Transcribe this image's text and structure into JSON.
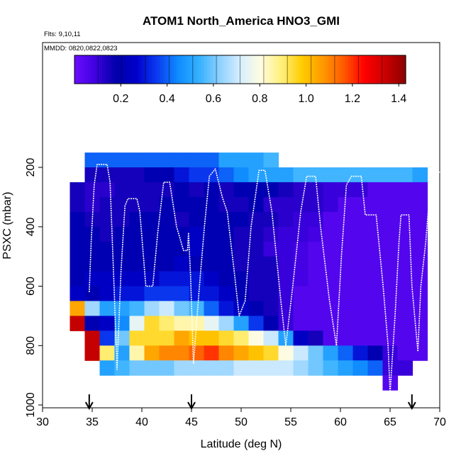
{
  "chart_data": {
    "type": "heatmap",
    "title": "ATOM1 North_America HNO3_GMI",
    "annotations": [
      "Flts: 9,10,11",
      "MMDD: 0820,0822,0823"
    ],
    "xlabel": "Latitude (deg N)",
    "ylabel": "PSXC (mbar)",
    "xlim": [
      30,
      70
    ],
    "ylim": [
      1000,
      0
    ],
    "x_ticks": [
      "30",
      "35",
      "40",
      "45",
      "50",
      "55",
      "60",
      "65",
      "70"
    ],
    "y_ticks": [
      "200",
      "400",
      "600",
      "800",
      "1000"
    ],
    "colorbar": {
      "range": [
        0,
        1.43
      ],
      "ticks": [
        "0.2",
        "0.4",
        "0.6",
        "0.8",
        "1.0",
        "1.2",
        "1.4"
      ],
      "colors": [
        "#6a0dff",
        "#4000e0",
        "#0000aa",
        "#0000cc",
        "#0b3cf0",
        "#0f8bff",
        "#33b0ff",
        "#8cd0ff",
        "#d6eeff",
        "#fffde0",
        "#fff07a",
        "#ffcc00",
        "#ff9900",
        "#ff5a00",
        "#ff0000",
        "#cc0000",
        "#8b0000"
      ]
    },
    "grid_columns_lat": [
      33.5,
      35,
      36.5,
      38,
      39.5,
      41,
      42.5,
      44,
      45.5,
      47,
      48.5,
      50,
      51.5,
      53,
      54.5,
      56,
      57.5,
      59,
      60.5,
      62,
      63.5,
      65,
      66.5,
      68
    ],
    "grid_rows_mbar": [
      175,
      225,
      275,
      325,
      375,
      425,
      475,
      525,
      575,
      625,
      675,
      725,
      775,
      825,
      875,
      925
    ],
    "values": [
      [
        null,
        0.4,
        0.4,
        0.4,
        0.4,
        0.4,
        0.4,
        0.4,
        0.4,
        0.4,
        0.5,
        0.5,
        0.5,
        0.55,
        null,
        null,
        null,
        null,
        null,
        null,
        null,
        null,
        null,
        null
      ],
      [
        null,
        0.15,
        0.15,
        0.15,
        0.15,
        0.2,
        0.2,
        0.3,
        0.35,
        0.35,
        0.4,
        0.45,
        0.5,
        0.5,
        0.5,
        0.55,
        0.55,
        0.55,
        0.55,
        0.55,
        0.55,
        0.55,
        0.55,
        0.5
      ],
      [
        0.15,
        0.12,
        0.12,
        0.15,
        0.15,
        0.15,
        0.15,
        0.2,
        0.15,
        0.2,
        0.15,
        0.2,
        0.2,
        0.2,
        0.15,
        0.12,
        0.12,
        0.1,
        0.1,
        0.1,
        0.05,
        0.05,
        0.05,
        0.05
      ],
      [
        0.15,
        0.12,
        0.15,
        0.15,
        0.15,
        0.15,
        0.2,
        0.2,
        0.2,
        0.2,
        0.15,
        0.15,
        0.2,
        0.12,
        0.12,
        0.12,
        0.12,
        0.1,
        0.05,
        0.05,
        0.05,
        0.05,
        0.05,
        0.05
      ],
      [
        0.2,
        0.15,
        0.15,
        0.15,
        0.2,
        0.2,
        0.2,
        0.15,
        0.2,
        0.2,
        0.2,
        0.2,
        0.15,
        0.15,
        0.12,
        0.1,
        0.1,
        0.05,
        0.05,
        0.05,
        0.05,
        0.05,
        0.05,
        0.05
      ],
      [
        0.2,
        0.2,
        0.15,
        0.2,
        0.2,
        0.2,
        0.2,
        0.2,
        0.25,
        0.2,
        0.2,
        0.15,
        0.15,
        0.12,
        0.1,
        0.1,
        0.08,
        0.05,
        0.05,
        0.05,
        0.05,
        0.05,
        0.05,
        0.05
      ],
      [
        0.2,
        0.2,
        0.2,
        0.2,
        0.2,
        0.2,
        0.2,
        0.2,
        0.25,
        0.2,
        0.2,
        0.15,
        0.15,
        0.1,
        0.1,
        0.08,
        0.05,
        0.05,
        0.05,
        0.05,
        0.05,
        0.05,
        0.05,
        0.05
      ],
      [
        0.2,
        0.2,
        0.2,
        0.2,
        0.2,
        0.2,
        0.2,
        0.25,
        0.2,
        0.2,
        0.2,
        0.15,
        0.15,
        0.15,
        0.1,
        0.08,
        0.05,
        0.05,
        0.05,
        0.05,
        0.05,
        0.05,
        0.05,
        0.05
      ],
      [
        0.2,
        0.25,
        0.25,
        0.25,
        0.25,
        0.25,
        0.3,
        0.3,
        0.3,
        0.25,
        0.2,
        0.2,
        0.15,
        0.15,
        0.1,
        0.08,
        0.05,
        0.05,
        0.05,
        0.05,
        0.05,
        0.05,
        0.05,
        0.05
      ],
      [
        0.25,
        0.2,
        0.25,
        0.3,
        0.3,
        0.35,
        0.35,
        0.35,
        0.3,
        0.3,
        0.25,
        0.2,
        0.15,
        0.15,
        0.1,
        0.05,
        0.05,
        0.05,
        0.05,
        0.05,
        0.05,
        0.05,
        0.05,
        0.05
      ],
      [
        1.05,
        0.65,
        0.5,
        0.5,
        0.55,
        0.65,
        0.7,
        0.6,
        0.55,
        0.4,
        0.3,
        0.25,
        0.2,
        0.15,
        0.1,
        0.05,
        0.05,
        0.05,
        0.05,
        0.05,
        0.05,
        0.05,
        0.05,
        0.05
      ],
      [
        1.35,
        0.2,
        0.25,
        0.45,
        0.75,
        0.95,
        0.9,
        0.85,
        0.85,
        0.75,
        0.65,
        0.5,
        0.35,
        0.2,
        0.1,
        0.05,
        0.05,
        0.05,
        0.05,
        0.05,
        0.05,
        0.05,
        0.05,
        0.05
      ],
      [
        null,
        1.35,
        0.35,
        0.6,
        0.95,
        0.95,
        0.95,
        1.05,
        1.0,
        1.0,
        0.95,
        0.9,
        0.8,
        0.7,
        0.5,
        0.25,
        0.15,
        0.05,
        0.05,
        0.05,
        0.05,
        0.05,
        0.05,
        0.05
      ],
      [
        null,
        1.35,
        0.9,
        0.5,
        0.85,
        1.05,
        1.1,
        1.1,
        1.15,
        1.2,
        1.1,
        1.05,
        1.0,
        0.95,
        0.8,
        0.7,
        0.6,
        0.5,
        0.4,
        0.3,
        0.2,
        0.1,
        0.05,
        0.05
      ],
      [
        null,
        null,
        0.5,
        0.55,
        0.6,
        0.6,
        0.6,
        0.65,
        0.65,
        0.65,
        0.65,
        0.7,
        0.7,
        0.7,
        0.7,
        0.65,
        0.6,
        0.55,
        0.5,
        0.45,
        0.4,
        0.1,
        0.1,
        null
      ],
      [
        null,
        null,
        null,
        null,
        null,
        null,
        null,
        null,
        null,
        null,
        null,
        null,
        null,
        null,
        null,
        null,
        null,
        null,
        null,
        null,
        null,
        0.05,
        null,
        null
      ]
    ],
    "flight_track": [
      [
        34.7,
        620
      ],
      [
        34.9,
        450
      ],
      [
        35.2,
        260
      ],
      [
        35.5,
        190
      ],
      [
        36.5,
        190
      ],
      [
        36.8,
        250
      ],
      [
        37.2,
        600
      ],
      [
        37.5,
        880
      ],
      [
        37.9,
        550
      ],
      [
        38.3,
        330
      ],
      [
        38.6,
        305
      ],
      [
        39.5,
        305
      ],
      [
        39.8,
        350
      ],
      [
        40.4,
        600
      ],
      [
        41.1,
        600
      ],
      [
        41.6,
        420
      ],
      [
        42.2,
        250
      ],
      [
        42.8,
        250
      ],
      [
        43.5,
        400
      ],
      [
        44.2,
        480
      ],
      [
        44.6,
        480
      ],
      [
        44.7,
        420
      ],
      [
        44.9,
        560
      ],
      [
        45.2,
        860
      ],
      [
        45.8,
        600
      ],
      [
        46.3,
        400
      ],
      [
        46.8,
        230
      ],
      [
        47.4,
        205
      ],
      [
        48.1,
        300
      ],
      [
        48.6,
        350
      ],
      [
        49.3,
        550
      ],
      [
        49.8,
        700
      ],
      [
        50.4,
        650
      ],
      [
        51.0,
        400
      ],
      [
        51.8,
        210
      ],
      [
        52.4,
        210
      ],
      [
        53.1,
        350
      ],
      [
        54.0,
        650
      ],
      [
        54.5,
        800
      ],
      [
        55.2,
        600
      ],
      [
        56.0,
        350
      ],
      [
        56.6,
        230
      ],
      [
        57.5,
        230
      ],
      [
        58.0,
        400
      ],
      [
        58.9,
        650
      ],
      [
        59.6,
        800
      ],
      [
        60.1,
        500
      ],
      [
        60.6,
        260
      ],
      [
        61.1,
        230
      ],
      [
        62.1,
        230
      ],
      [
        62.5,
        360
      ],
      [
        63.6,
        360
      ],
      [
        64.3,
        600
      ],
      [
        64.8,
        800
      ],
      [
        65.0,
        960
      ],
      [
        65.5,
        700
      ],
      [
        65.9,
        450
      ],
      [
        66.1,
        360
      ],
      [
        66.9,
        360
      ],
      [
        67.2,
        600
      ],
      [
        67.8,
        820
      ],
      [
        68.1,
        600
      ],
      [
        68.6,
        450
      ],
      [
        69.0,
        280
      ],
      [
        69.5,
        230
      ],
      [
        70.0,
        215
      ]
    ],
    "arrows_lat": [
      34.7,
      45.0,
      67.2
    ]
  }
}
